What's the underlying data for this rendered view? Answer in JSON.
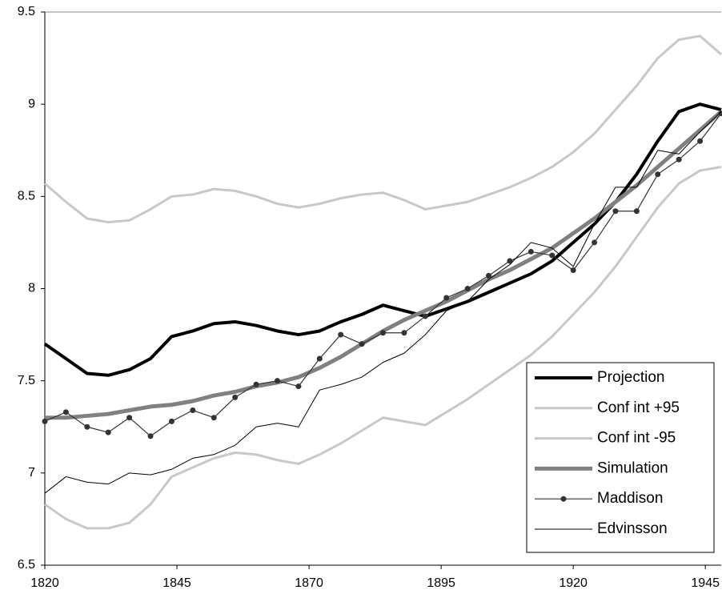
{
  "chart_data": {
    "type": "line",
    "x": [
      1820,
      1824,
      1828,
      1832,
      1836,
      1840,
      1844,
      1848,
      1852,
      1856,
      1860,
      1864,
      1868,
      1872,
      1876,
      1880,
      1884,
      1888,
      1892,
      1896,
      1900,
      1904,
      1908,
      1912,
      1916,
      1920,
      1924,
      1928,
      1932,
      1936,
      1940,
      1944,
      1948
    ],
    "xlim": [
      1820,
      1948
    ],
    "xticks": [
      1820,
      1845,
      1870,
      1895,
      1920,
      1945
    ],
    "ylim": [
      6.5,
      9.5
    ],
    "yticks": [
      6.5,
      7,
      7.5,
      8,
      8.5,
      9,
      9.5
    ],
    "legend": "bottom-right",
    "series": [
      {
        "name": "Projection",
        "color": "#000000",
        "line_width": 4,
        "marker": "none",
        "values": [
          7.7,
          7.62,
          7.54,
          7.53,
          7.56,
          7.62,
          7.74,
          7.77,
          7.81,
          7.82,
          7.8,
          7.77,
          7.75,
          7.77,
          7.82,
          7.86,
          7.91,
          7.88,
          7.85,
          7.89,
          7.93,
          7.98,
          8.03,
          8.08,
          8.15,
          8.25,
          8.35,
          8.47,
          8.62,
          8.8,
          8.96,
          9.0,
          8.97
        ]
      },
      {
        "name": "Conf int +95",
        "color": "#c8c8c8",
        "line_width": 3,
        "marker": "none",
        "values": [
          8.57,
          8.47,
          8.38,
          8.36,
          8.37,
          8.43,
          8.5,
          8.51,
          8.54,
          8.53,
          8.5,
          8.46,
          8.44,
          8.46,
          8.49,
          8.51,
          8.52,
          8.48,
          8.43,
          8.45,
          8.47,
          8.51,
          8.55,
          8.6,
          8.66,
          8.74,
          8.84,
          8.97,
          9.1,
          9.25,
          9.35,
          9.37,
          9.27
        ]
      },
      {
        "name": "Conf int -95",
        "color": "#c8c8c8",
        "line_width": 3,
        "marker": "none",
        "values": [
          6.83,
          6.75,
          6.7,
          6.7,
          6.73,
          6.83,
          6.98,
          7.03,
          7.08,
          7.11,
          7.1,
          7.07,
          7.05,
          7.1,
          7.16,
          7.23,
          7.3,
          7.28,
          7.26,
          7.33,
          7.4,
          7.48,
          7.56,
          7.64,
          7.74,
          7.86,
          7.98,
          8.12,
          8.28,
          8.44,
          8.57,
          8.64,
          8.66
        ]
      },
      {
        "name": "Simulation",
        "color": "#808080",
        "line_width": 5,
        "marker": "none",
        "values": [
          7.3,
          7.3,
          7.31,
          7.32,
          7.34,
          7.36,
          7.37,
          7.39,
          7.42,
          7.44,
          7.47,
          7.49,
          7.52,
          7.57,
          7.63,
          7.7,
          7.77,
          7.83,
          7.88,
          7.93,
          7.99,
          8.05,
          8.1,
          8.16,
          8.22,
          8.3,
          8.38,
          8.47,
          8.56,
          8.66,
          8.76,
          8.86,
          8.96
        ]
      },
      {
        "name": "Maddison",
        "color": "#333333",
        "line_width": 1.2,
        "marker": "circle",
        "values": [
          7.28,
          7.33,
          7.25,
          7.22,
          7.3,
          7.2,
          7.28,
          7.34,
          7.3,
          7.41,
          7.48,
          7.5,
          7.47,
          7.62,
          7.75,
          7.7,
          7.76,
          7.76,
          7.85,
          7.95,
          8.0,
          8.07,
          8.15,
          8.2,
          8.18,
          8.1,
          8.25,
          8.42,
          8.42,
          8.62,
          8.7,
          8.8,
          8.95
        ]
      },
      {
        "name": "Edvinsson",
        "color": "#000000",
        "line_width": 1,
        "marker": "none",
        "values": [
          6.89,
          6.98,
          6.95,
          6.94,
          7.0,
          6.99,
          7.02,
          7.08,
          7.1,
          7.15,
          7.25,
          7.27,
          7.25,
          7.45,
          7.48,
          7.52,
          7.6,
          7.65,
          7.75,
          7.88,
          7.93,
          8.05,
          8.13,
          8.25,
          8.22,
          8.12,
          8.35,
          8.55,
          8.55,
          8.75,
          8.73,
          8.85,
          8.96
        ]
      }
    ]
  }
}
